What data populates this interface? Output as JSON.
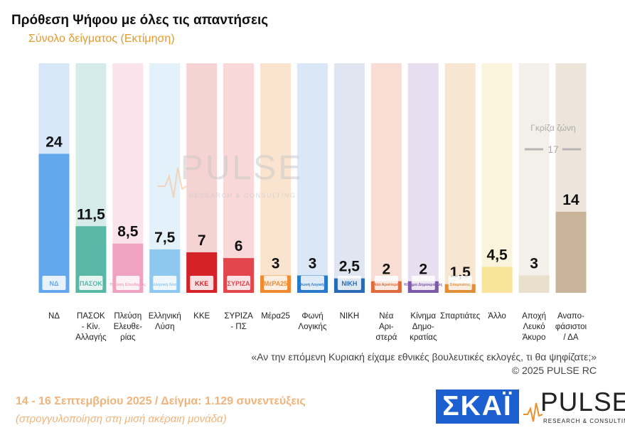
{
  "header": {
    "title": "Πρόθεση Ψήφου με όλες τις απαντήσεις",
    "subtitle": "Σύνολο δείγματος   (Εκτίμηση)"
  },
  "chart_data": {
    "type": "bar",
    "categories": [
      "ΝΔ",
      "ΠΑΣΟΚ\n- Κίν.\nΑλλαγής",
      "Πλεύση\nΕλευθε-\nρίας",
      "Ελληνική\nΛύση",
      "ΚΚΕ",
      "ΣΥΡΙΖΑ\n- ΠΣ",
      "Μέρα25",
      "Φωνή\nΛογικής",
      "ΝΙΚΗ",
      "Νέα\nΑρι-\nστερά",
      "Κίνημα\nΔημο-\nκρατίας",
      "Σπαρτιάτες",
      "Άλλο",
      "Αποχή\nΛευκό\nΆκυρο",
      "Αναπο-\nφάσιστοι\n/ ΔΑ"
    ],
    "values": [
      24,
      11.5,
      8.5,
      7.5,
      7,
      6,
      3,
      3,
      2.5,
      2,
      2,
      1.5,
      4.5,
      3,
      14
    ],
    "value_labels": [
      "24",
      "11,5",
      "8,5",
      "7,5",
      "7",
      "6",
      "3",
      "3",
      "2,5",
      "2",
      "2",
      "1,5",
      "4,5",
      "3",
      "14"
    ],
    "bar_colors": [
      "#63a7ec",
      "#59b7a5",
      "#f0a3c0",
      "#8ec7f0",
      "#d42228",
      "#e2454b",
      "#f08a30",
      "#2a78c8",
      "#2a6ab4",
      "#e06a3e",
      "#7d5aa8",
      "#e08e38",
      "#f7e49a",
      "#e8dfcc",
      "#c9b49a"
    ],
    "bg_colors": [
      "#d7e7f9",
      "#d6ecea",
      "#fae3eb",
      "#e3f1fb",
      "#f6d3d3",
      "#f8d8d8",
      "#fbe4cf",
      "#d9e7f6",
      "#dfe6f2",
      "#f7ddd3",
      "#e7def0",
      "#f7e6d2",
      "#fbf4dc",
      "#f3f0e9",
      "#eee5da"
    ],
    "logos": [
      "ΝΔ",
      "ΠΑΣΟΚ",
      "Πλεύση Ελευθερίας",
      "Ελληνική Λύση",
      "ΚΚΕ",
      "ΣΥΡΙΖΑ",
      "ΜέΡΑ25",
      "Φωνή Λογικής",
      "ΝΙΚΗ",
      "Νέα Αριστερά",
      "Κίνημα Δημοκρατίας",
      "Σπαρτιάτες",
      "",
      "",
      ""
    ],
    "ylim": [
      0,
      30
    ],
    "gray_zone": {
      "label": "Γκρίζα ζώνη",
      "value": 17,
      "value_label": "17"
    },
    "watermark": {
      "word": "PULSE",
      "sub": "RESEARCH & CONSULTING"
    }
  },
  "question_text": "«Αν την επόμενη Κυριακή είχαμε εθνικές βουλευτικές εκλογές, τι θα ψηφίζατε;»",
  "copyright": "©  2025  PULSE RC",
  "footer": {
    "dates_sample": "14 - 16 Σεπτεμβρίου 2025  /  Δείγμα:  1.129 συνεντεύξεις",
    "rounding_note": "(στρογγυλοποίηση στη μισή ακέραιη μονάδα)"
  },
  "logos": {
    "skai": "ΣΚΑΪ",
    "pulse": "PULSE",
    "pulse_sub": "RESEARCH & CONSULTING"
  },
  "colors": {
    "accent": "#e49a2b",
    "footer": "#f0b37a",
    "skai_blue": "#1c5fd1"
  }
}
